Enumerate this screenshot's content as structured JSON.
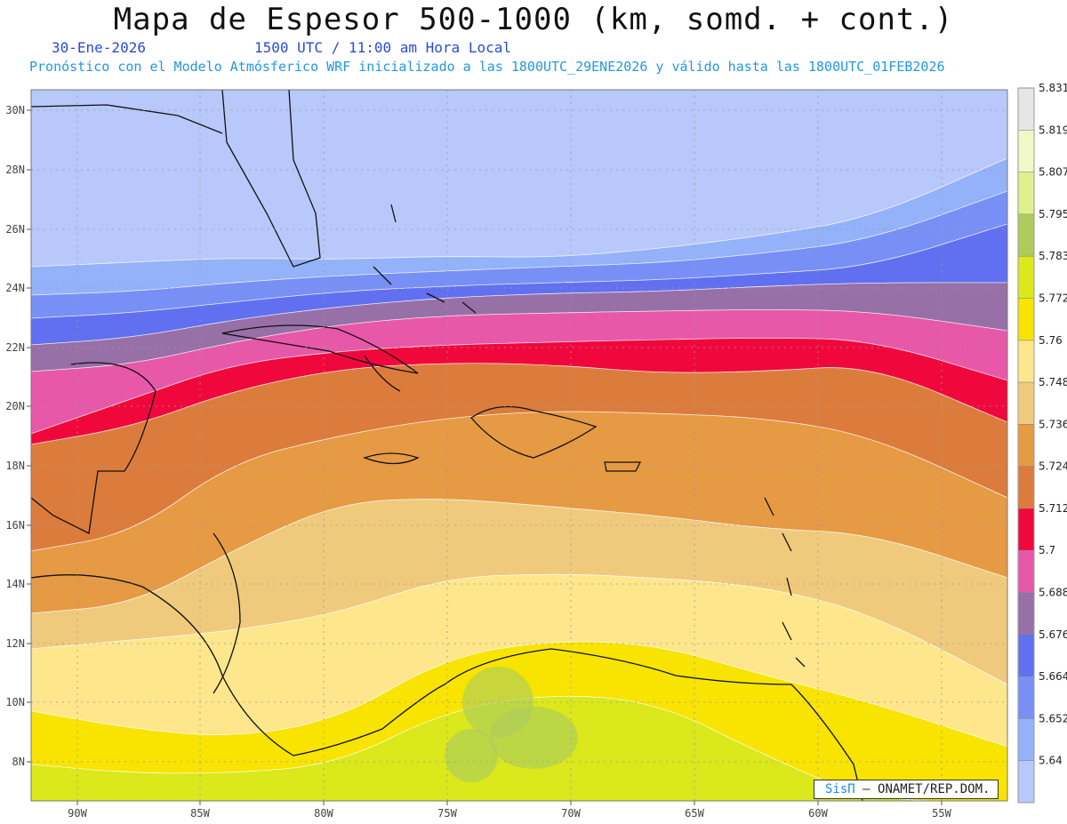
{
  "header": {
    "title": "Mapa de Espesor 500-1000 (km, somd. + cont.)",
    "date": "30-Ene-2026",
    "time": "1500 UTC / 11:00 am Hora Local",
    "forecast": "Pronóstico con el Modelo Atmósferico WRF inicializado a las 1800UTC_29ENE2026 y válido hasta las  1800UTC_01FEB2026"
  },
  "map": {
    "longitude_labels": [
      "90W",
      "85W",
      "80W",
      "75W",
      "70W",
      "65W",
      "60W",
      "55W"
    ],
    "latitude_labels": [
      "30N",
      "28N",
      "26N",
      "24N",
      "22N",
      "20N",
      "18N",
      "16N",
      "14N",
      "12N",
      "10N",
      "8N"
    ],
    "bands": [
      {
        "color": "#b8c8fa"
      },
      {
        "color": "#94b2fa"
      },
      {
        "color": "#7890f6"
      },
      {
        "color": "#6070f0"
      },
      {
        "color": "#9870a8"
      },
      {
        "color": "#e858a8"
      },
      {
        "color": "#f0083c"
      },
      {
        "color": "#dc7c3c"
      },
      {
        "color": "#e69a44"
      },
      {
        "color": "#f0ca7c"
      },
      {
        "color": "#fde68c"
      },
      {
        "color": "#f8e400"
      },
      {
        "color": "#dae81c"
      }
    ]
  },
  "legend": {
    "colors": [
      "#b8c8fa",
      "#94b2fa",
      "#7890f6",
      "#6070f0",
      "#9870a8",
      "#e858a8",
      "#f0083c",
      "#dc7c3c",
      "#e69a44",
      "#f0ca7c",
      "#fde68c",
      "#f8e400",
      "#dae81c",
      "#aecc5c",
      "#e0f08c",
      "#f0f8c8",
      "#e6e6e6"
    ],
    "labels": [
      "5.64",
      "5.652",
      "5.664",
      "5.676",
      "5.688",
      "5.7",
      "5.712",
      "5.724",
      "5.736",
      "5.748",
      "5.76",
      "5.772",
      "5.783",
      "5.795",
      "5.807",
      "5.819",
      "5.831"
    ]
  },
  "credit": {
    "brand": "SisΠ",
    "text": "– ONAMET/REP.DOM."
  }
}
